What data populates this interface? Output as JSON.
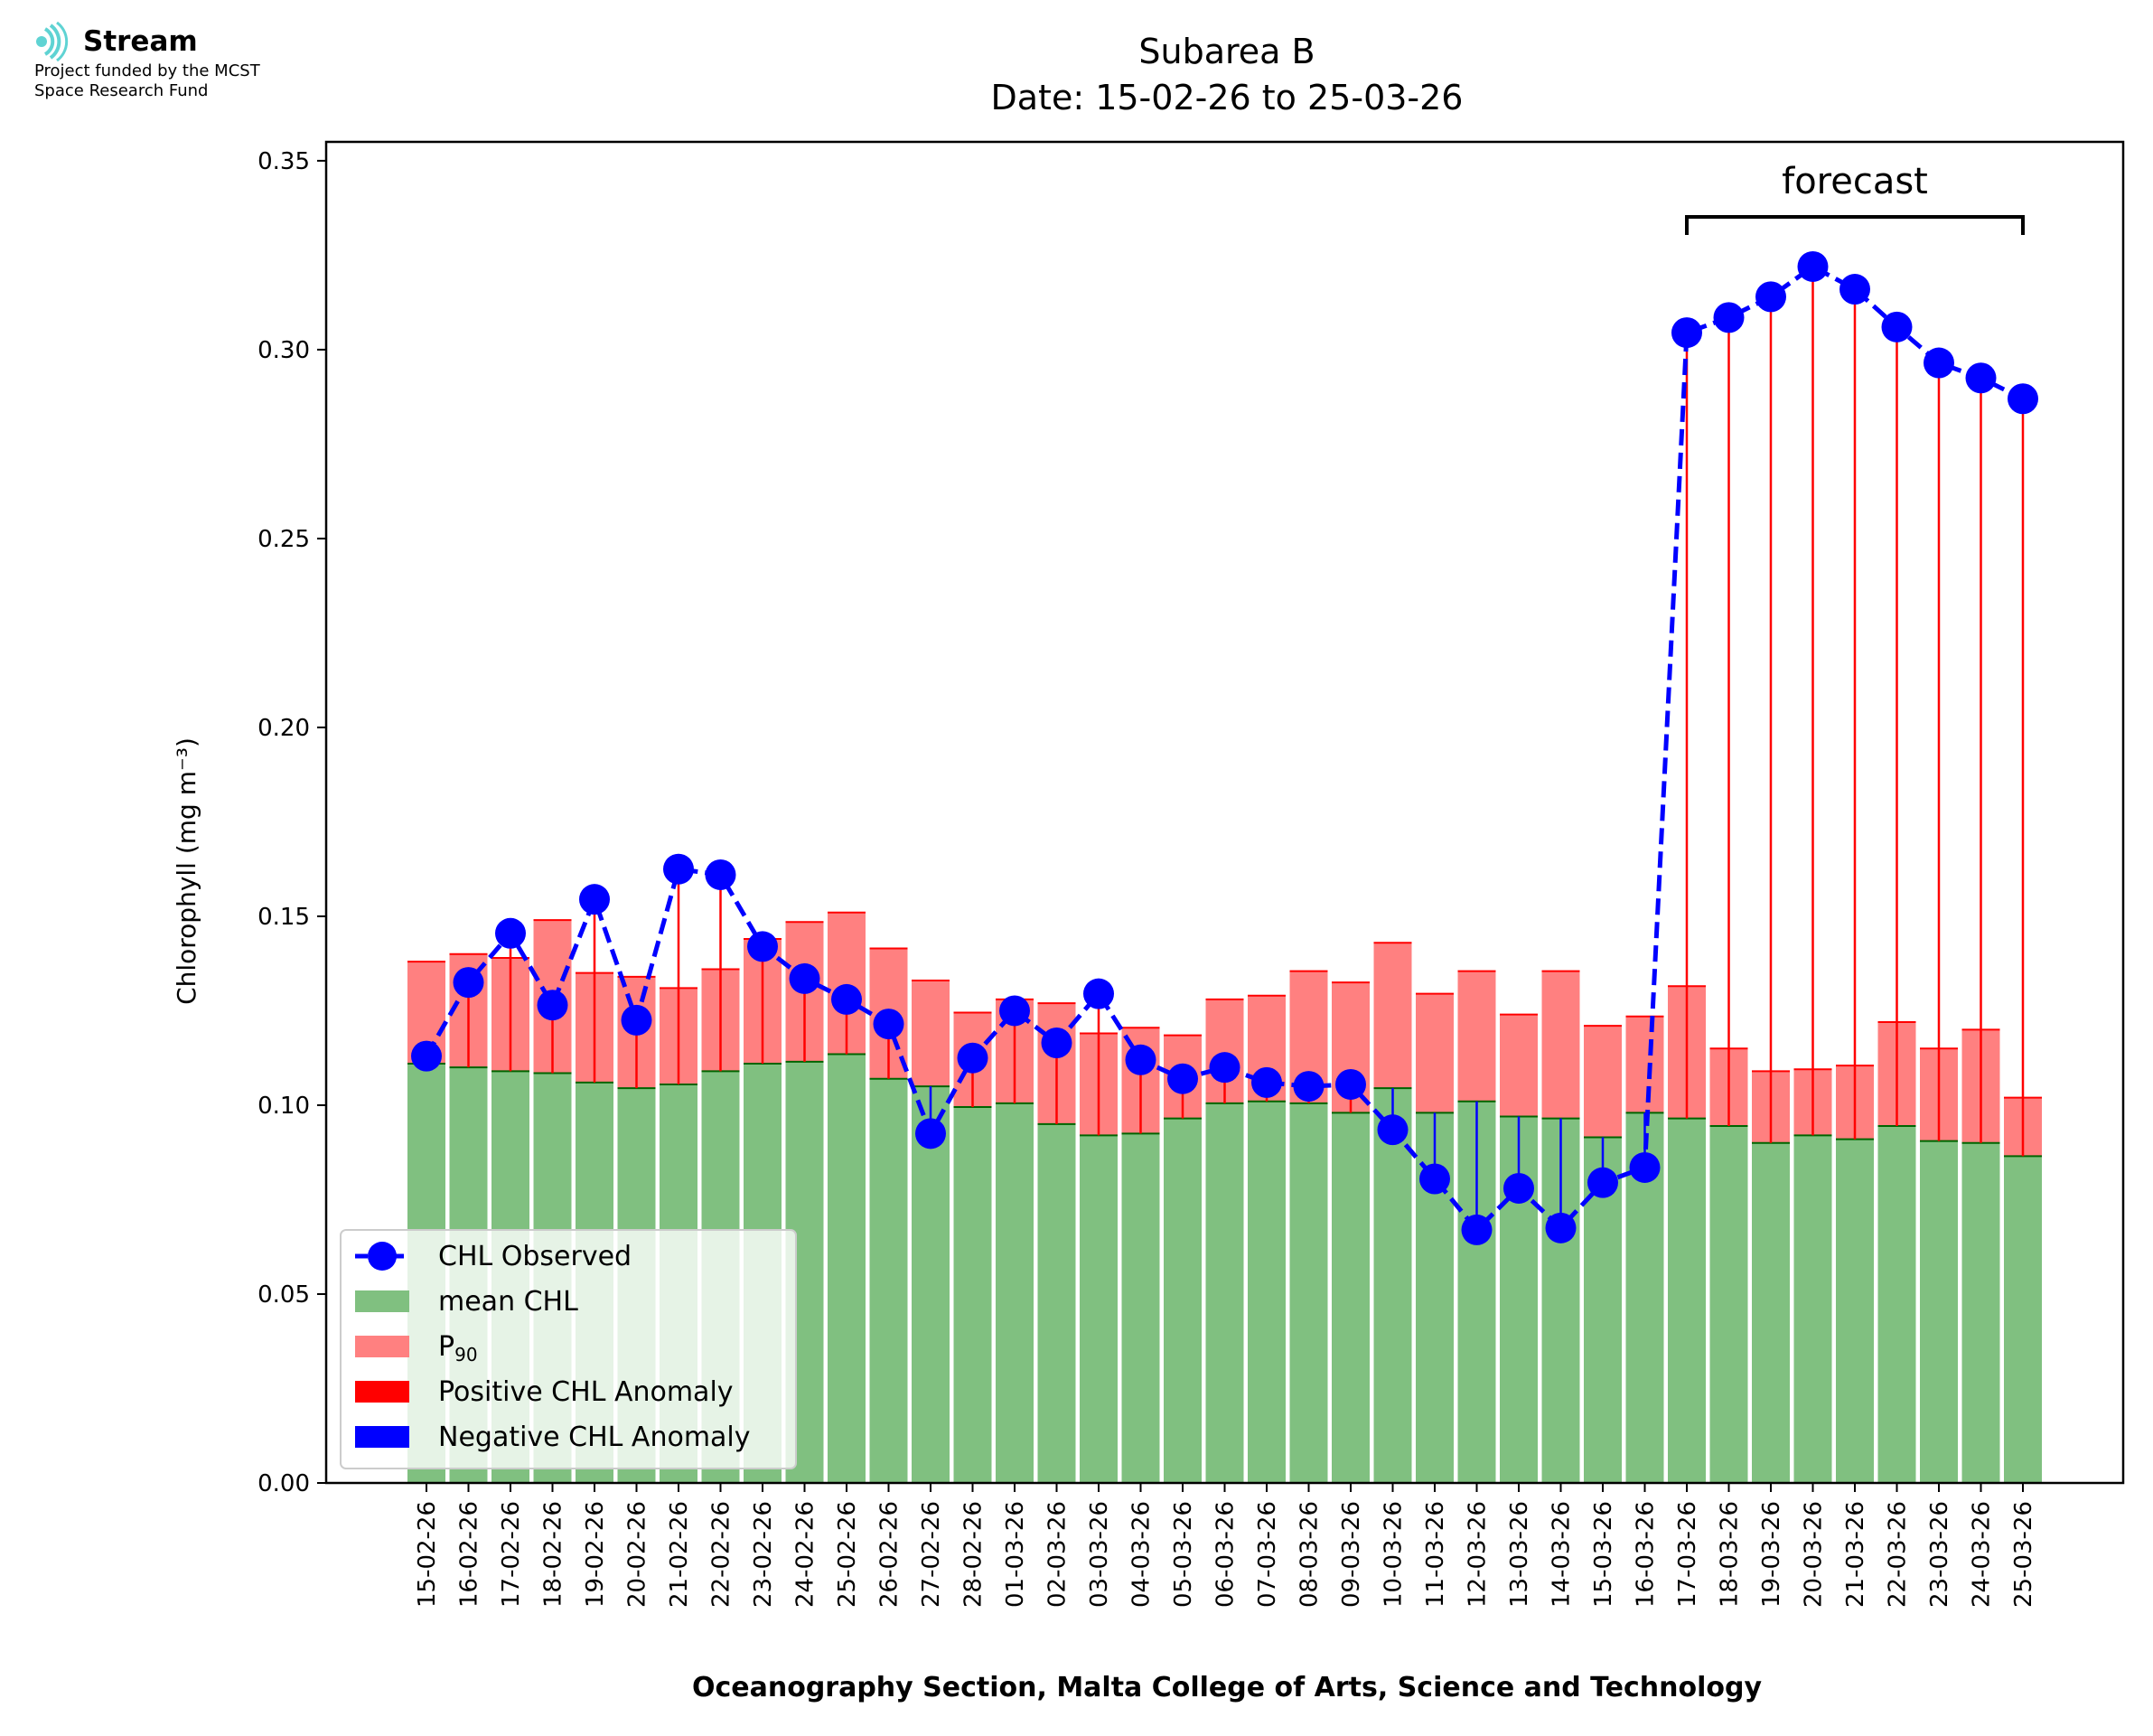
{
  "logo": {
    "name": "Stream",
    "funding_line1": "Project funded by the MCST",
    "funding_line2": "Space Research Fund",
    "color": "#5fd3d3"
  },
  "chart_data": {
    "type": "bar",
    "title": "Subarea B",
    "subtitle": "Date: 15-02-26 to 25-03-26",
    "xlabel": "Oceanography Section, Malta College of Arts, Science and Technology",
    "ylabel": "Chlorophyll (mg m⁻³)",
    "ylim": [
      0,
      0.355
    ],
    "yticks": [
      "0.00",
      "0.05",
      "0.10",
      "0.15",
      "0.20",
      "0.25",
      "0.30",
      "0.35"
    ],
    "grid": false,
    "legend_position": "lower-left",
    "annotation": "forecast",
    "forecast_start": "17-03-26",
    "forecast_end": "25-03-26",
    "categories": [
      "15-02-26",
      "16-02-26",
      "17-02-26",
      "18-02-26",
      "19-02-26",
      "20-02-26",
      "21-02-26",
      "22-02-26",
      "23-02-26",
      "24-02-26",
      "25-02-26",
      "26-02-26",
      "27-02-26",
      "28-02-26",
      "01-03-26",
      "02-03-26",
      "03-03-26",
      "04-03-26",
      "05-03-26",
      "06-03-26",
      "07-03-26",
      "08-03-26",
      "09-03-26",
      "10-03-26",
      "11-03-26",
      "12-03-26",
      "13-03-26",
      "14-03-26",
      "15-03-26",
      "16-03-26",
      "17-03-26",
      "18-03-26",
      "19-03-26",
      "20-03-26",
      "21-03-26",
      "22-03-26",
      "23-03-26",
      "24-03-26",
      "25-03-26"
    ],
    "series": [
      {
        "name": "mean CHL",
        "color": "#80c080",
        "values": [
          0.111,
          0.11,
          0.109,
          0.1085,
          0.106,
          0.1045,
          0.1055,
          0.109,
          0.111,
          0.1115,
          0.1135,
          0.107,
          0.105,
          0.0995,
          0.1005,
          0.095,
          0.092,
          0.0925,
          0.0965,
          0.1005,
          0.101,
          0.1005,
          0.098,
          0.1045,
          0.098,
          0.101,
          0.097,
          0.0965,
          0.0915,
          0.098,
          0.0965,
          0.0945,
          0.09,
          0.092,
          0.091,
          0.0945,
          0.0905,
          0.09,
          0.0865
        ]
      },
      {
        "name": "P90",
        "color": "#ff8080",
        "values": [
          0.138,
          0.14,
          0.139,
          0.149,
          0.135,
          0.134,
          0.131,
          0.136,
          0.144,
          0.1485,
          0.151,
          0.1415,
          0.133,
          0.1245,
          0.128,
          0.127,
          0.119,
          0.1205,
          0.1185,
          0.128,
          0.129,
          0.1355,
          0.1325,
          0.143,
          0.1295,
          0.1355,
          0.124,
          0.1355,
          0.121,
          0.1235,
          0.1315,
          0.115,
          0.109,
          0.1095,
          0.1105,
          0.122,
          0.115,
          0.12,
          0.102
        ]
      },
      {
        "name": "CHL Observed",
        "color": "#0000ff",
        "values": [
          0.113,
          0.1325,
          0.1455,
          0.1265,
          0.1545,
          0.1225,
          0.1625,
          0.161,
          0.142,
          0.1335,
          0.128,
          0.1215,
          0.0925,
          0.1125,
          0.125,
          0.1165,
          0.1295,
          0.112,
          0.107,
          0.11,
          0.106,
          0.105,
          0.1055,
          0.0935,
          0.0805,
          0.067,
          0.078,
          0.0675,
          0.0795,
          0.0835,
          0.3045,
          0.3085,
          0.314,
          0.322,
          0.316,
          0.306,
          0.2965,
          0.2925,
          0.287
        ]
      }
    ],
    "legend": [
      {
        "label": "CHL Observed",
        "kind": "line-marker",
        "color": "#0000ff"
      },
      {
        "label": "mean CHL",
        "kind": "patch",
        "color": "#80c080"
      },
      {
        "label": "P",
        "sub": "90",
        "kind": "patch",
        "color": "#ff8080"
      },
      {
        "label": "Positive CHL Anomaly",
        "kind": "patch",
        "color": "#ff0000"
      },
      {
        "label": "Negative CHL Anomaly",
        "kind": "patch",
        "color": "#0000ff"
      }
    ],
    "colors": {
      "positive_anomaly": "#ff0000",
      "negative_anomaly": "#0000ff",
      "mean_edge": "#006400",
      "p90_edge": "#ff0000"
    }
  }
}
